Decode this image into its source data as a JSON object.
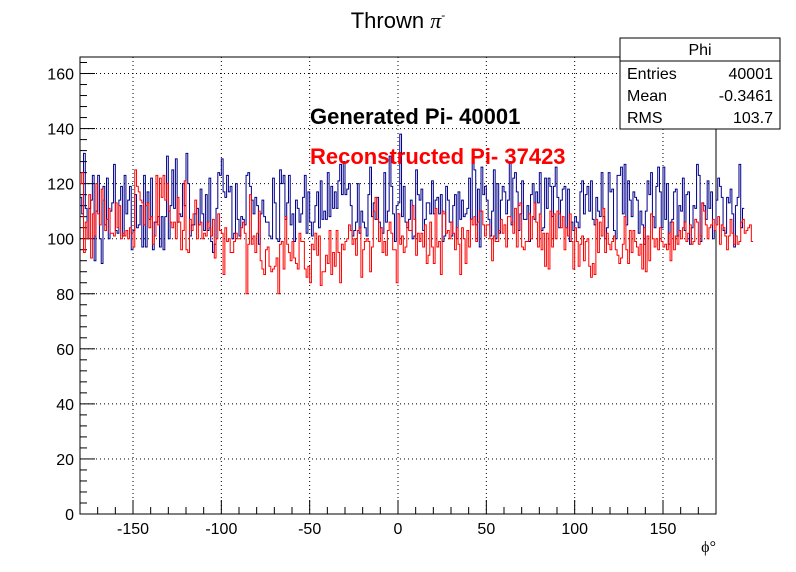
{
  "chart_data": {
    "type": "histogram",
    "title_main": "Thrown ",
    "title_symbol": "π",
    "title_superscript": "-",
    "xlabel": "ϕ°",
    "ylabel": "",
    "xlim": [
      -180,
      180
    ],
    "ylim": [
      0,
      166
    ],
    "xticks": [
      -150,
      -100,
      -50,
      0,
      50,
      100,
      150
    ],
    "xtick_labels": [
      "-150",
      "-100",
      "-50",
      "0",
      "50",
      "100",
      "150"
    ],
    "yticks": [
      0,
      20,
      40,
      60,
      80,
      100,
      120,
      140,
      160
    ],
    "ytick_labels": [
      "0",
      "20",
      "40",
      "60",
      "80",
      "100",
      "120",
      "140",
      "160"
    ],
    "grid": true,
    "bin_width": 1,
    "series": [
      {
        "color": "#00008b",
        "values": [
          115,
          109,
          131,
          111,
          100,
          111,
          114,
          123,
          92,
          110,
          123,
          100,
          91,
          119,
          105,
          122,
          100,
          110,
          113,
          127,
          103,
          102,
          114,
          119,
          101,
          123,
          109,
          114,
          119,
          96,
          103,
          116,
          104,
          105,
          112,
          97,
          123,
          97,
          117,
          107,
          122,
          96,
          106,
          106,
          108,
          97,
          108,
          96,
          108,
          130,
          100,
          112,
          125,
          111,
          129,
          106,
          109,
          108,
          120,
          112,
          131,
          120,
          101,
          105,
          105,
          109,
          111,
          105,
          118,
          109,
          103,
          116,
          103,
          122,
          99,
          95,
          98,
          111,
          124,
          123,
          129,
          117,
          115,
          123,
          117,
          119,
          100,
          102,
          120,
          107,
          101,
          108,
          107,
          105,
          123,
          124,
          119,
          114,
          109,
          115,
          112,
          98,
          109,
          114,
          108,
          106,
          106,
          101,
          100,
          122,
          113,
          100,
          99,
          125,
          120,
          123,
          107,
          113,
          123,
          105,
          109,
          99,
          114,
          111,
          106,
          109,
          115,
          123,
          102,
          117,
          106,
          101,
          106,
          112,
          117,
          104,
          121,
          107,
          110,
          107,
          124,
          108,
          119,
          111,
          117,
          111,
          121,
          127,
          116,
          128,
          116,
          118,
          120,
          112,
          101,
          103,
          106,
          120,
          102,
          110,
          106,
          104,
          101,
          116,
          126,
          108,
          113,
          107,
          115,
          106,
          104,
          102,
          124,
          106,
          110,
          130,
          119,
          109,
          99,
          112,
          113,
          138,
          108,
          119,
          106,
          104,
          107,
          114,
          100,
          101,
          125,
          116,
          114,
          118,
          103,
          107,
          113,
          113,
          109,
          121,
          109,
          114,
          115,
          109,
          116,
          99,
          101,
          119,
          114,
          106,
          101,
          112,
          116,
          100,
          117,
          107,
          114,
          108,
          109,
          111,
          122,
          107,
          129,
          125,
          105,
          118,
          97,
          126,
          116,
          119,
          114,
          107,
          101,
          110,
          125,
          100,
          120,
          102,
          114,
          119,
          117,
          109,
          114,
          128,
          105,
          122,
          124,
          117,
          103,
          109,
          121,
          107,
          107,
          112,
          99,
          116,
          120,
          107,
          117,
          113,
          124,
          103,
          104,
          122,
          111,
          122,
          119,
          108,
          119,
          126,
          115,
          104,
          114,
          118,
          119,
          104,
          118,
          99,
          106,
          103,
          108,
          106,
          104,
          117,
          121,
          109,
          116,
          119,
          110,
          121,
          107,
          105,
          115,
          110,
          108,
          124,
          108,
          100,
          104,
          124,
          117,
          118,
          103,
          100,
          123,
          123,
          126,
          109,
          127,
          105,
          121,
          114,
          108,
          117,
          115,
          114,
          102,
          110,
          105,
          98,
          110,
          121,
          116,
          124,
          108,
          104,
          119,
          126,
          117,
          104,
          126,
          107,
          120,
          98,
          106,
          107,
          117,
          118,
          101,
          112,
          110,
          122,
          103,
          116,
          117,
          98,
          104,
          112,
          111,
          127,
          123,
          99,
          113,
          112,
          107,
          121,
          111,
          117,
          100,
          103,
          114,
          122,
          119,
          115,
          103,
          102,
          115,
          113,
          118,
          109,
          97,
          112,
          115,
          127,
          104,
          111
        ]
      },
      {
        "color": "#ff0000",
        "values": [
          120,
          124,
          95,
          106,
          100,
          116,
          93,
          109,
          101,
          120,
          109,
          105,
          118,
          114,
          103,
          107,
          111,
          102,
          102,
          101,
          113,
          104,
          112,
          100,
          102,
          101,
          103,
          100,
          104,
          102,
          97,
          125,
          119,
          117,
          114,
          113,
          105,
          112,
          113,
          104,
          108,
          98,
          101,
          123,
          105,
          122,
          115,
          123,
          114,
          120,
          110,
          106,
          104,
          106,
          100,
          115,
          106,
          96,
          103,
          121,
          96,
          95,
          107,
          103,
          109,
          114,
          100,
          105,
          106,
          100,
          102,
          101,
          106,
          104,
          101,
          107,
          93,
          100,
          109,
          103,
          102,
          87,
          104,
          99,
          100,
          95,
          95,
          99,
          102,
          100,
          100,
          104,
          106,
          102,
          80,
          98,
          116,
          98,
          101,
          95,
          102,
          110,
          92,
          89,
          87,
          96,
          97,
          90,
          88,
          89,
          90,
          93,
          80,
          98,
          99,
          89,
          108,
          98,
          95,
          92,
          99,
          93,
          91,
          89,
          102,
          99,
          99,
          89,
          86,
          90,
          84,
          98,
          96,
          102,
          94,
          101,
          83,
          88,
          88,
          94,
          91,
          103,
          87,
          95,
          90,
          103,
          95,
          84,
          98,
          96,
          99,
          100,
          105,
          103,
          98,
          100,
          94,
          103,
          104,
          86,
          96,
          99,
          100,
          99,
          88,
          97,
          110,
          115,
          107,
          99,
          104,
          95,
          99,
          94,
          103,
          106,
          102,
          96,
          96,
          84,
          109,
          98,
          101,
          95,
          97,
          106,
          103,
          103,
          112,
          107,
          94,
          102,
          99,
          102,
          97,
          105,
          91,
          94,
          106,
          97,
          91,
          111,
          97,
          99,
          87,
          110,
          109,
          102,
          103,
          100,
          106,
          102,
          96,
          104,
          98,
          87,
          104,
          100,
          91,
          103,
          97,
          107,
          105,
          108,
          99,
          106,
          110,
          110,
          105,
          101,
          105,
          105,
          100,
          92,
          101,
          99,
          99,
          103,
          107,
          102,
          105,
          97,
          108,
          108,
          106,
          102,
          111,
          97,
          112,
          113,
          97,
          96,
          99,
          99,
          109,
          100,
          108,
          113,
          106,
          97,
          109,
          96,
          102,
          90,
          102,
          89,
          110,
          97,
          109,
          100,
          110,
          109,
          104,
          108,
          96,
          104,
          101,
          109,
          99,
          89,
          104,
          99,
          90,
          98,
          101,
          92,
          99,
          100,
          90,
          86,
          91,
          87,
          107,
          95,
          106,
          101,
          111,
          95,
          102,
          98,
          96,
          99,
          101,
          96,
          94,
          91,
          93,
          98,
          108,
          96,
          91,
          103,
          95,
          103,
          99,
          97,
          94,
          98,
          89,
          104,
          88,
          101,
          92,
          109,
          100,
          97,
          100,
          96,
          104,
          99,
          97,
          98,
          96,
          102,
          92,
          106,
          96,
          101,
          98,
          103,
          100,
          104,
          106,
          99,
          102,
          105,
          98,
          99,
          107,
          106,
          98,
          101,
          113,
          110,
          105,
          100,
          104,
          105,
          107,
          103,
          105,
          108,
          98,
          105,
          104,
          101,
          96,
          101,
          107,
          102,
          98,
          101,
          98,
          99,
          106,
          107,
          102,
          103,
          104,
          105,
          99
        ]
      }
    ],
    "annotations": {
      "generated": "Generated Pi- 40001",
      "reconstructed": "Reconstructed Pi- 37423"
    },
    "stats_box": {
      "title": "Phi",
      "rows": [
        {
          "label": "Entries",
          "value": "40001"
        },
        {
          "label": "Mean",
          "value": "-0.3461"
        },
        {
          "label": "RMS",
          "value": "103.7"
        }
      ]
    }
  }
}
